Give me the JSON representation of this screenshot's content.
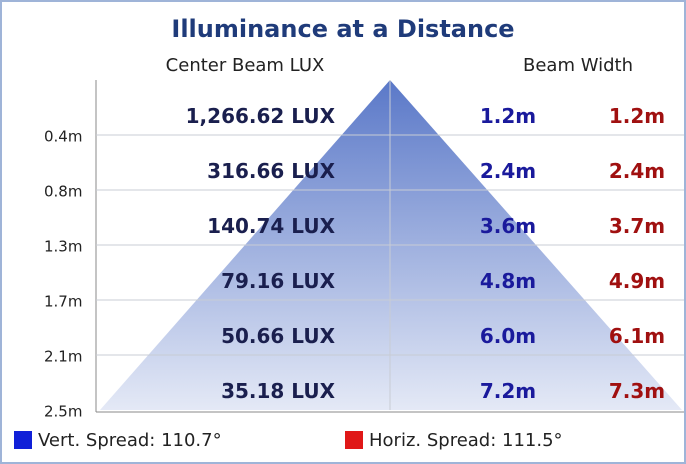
{
  "title": "Illuminance at a Distance",
  "headers": {
    "lux": "Center Beam LUX",
    "width": "Beam Width"
  },
  "rows": [
    {
      "distance": "0.4m",
      "lux": "1,266.62 LUX",
      "vertical": "1.2m",
      "horizontal": "1.2m"
    },
    {
      "distance": "0.8m",
      "lux": "316.66 LUX",
      "vertical": "2.4m",
      "horizontal": "2.4m"
    },
    {
      "distance": "1.3m",
      "lux": "140.74 LUX",
      "vertical": "3.6m",
      "horizontal": "3.7m"
    },
    {
      "distance": "1.7m",
      "lux": "79.16 LUX",
      "vertical": "4.8m",
      "horizontal": "4.9m"
    },
    {
      "distance": "2.1m",
      "lux": "50.66 LUX",
      "vertical": "6.0m",
      "horizontal": "6.1m"
    },
    {
      "distance": "2.5m",
      "lux": "35.18 LUX",
      "vertical": "7.2m",
      "horizontal": "7.3m"
    }
  ],
  "legend": {
    "vertical": "Vert. Spread: 110.7°",
    "horizontal": "Horiz. Spread: 111.5°"
  }
}
